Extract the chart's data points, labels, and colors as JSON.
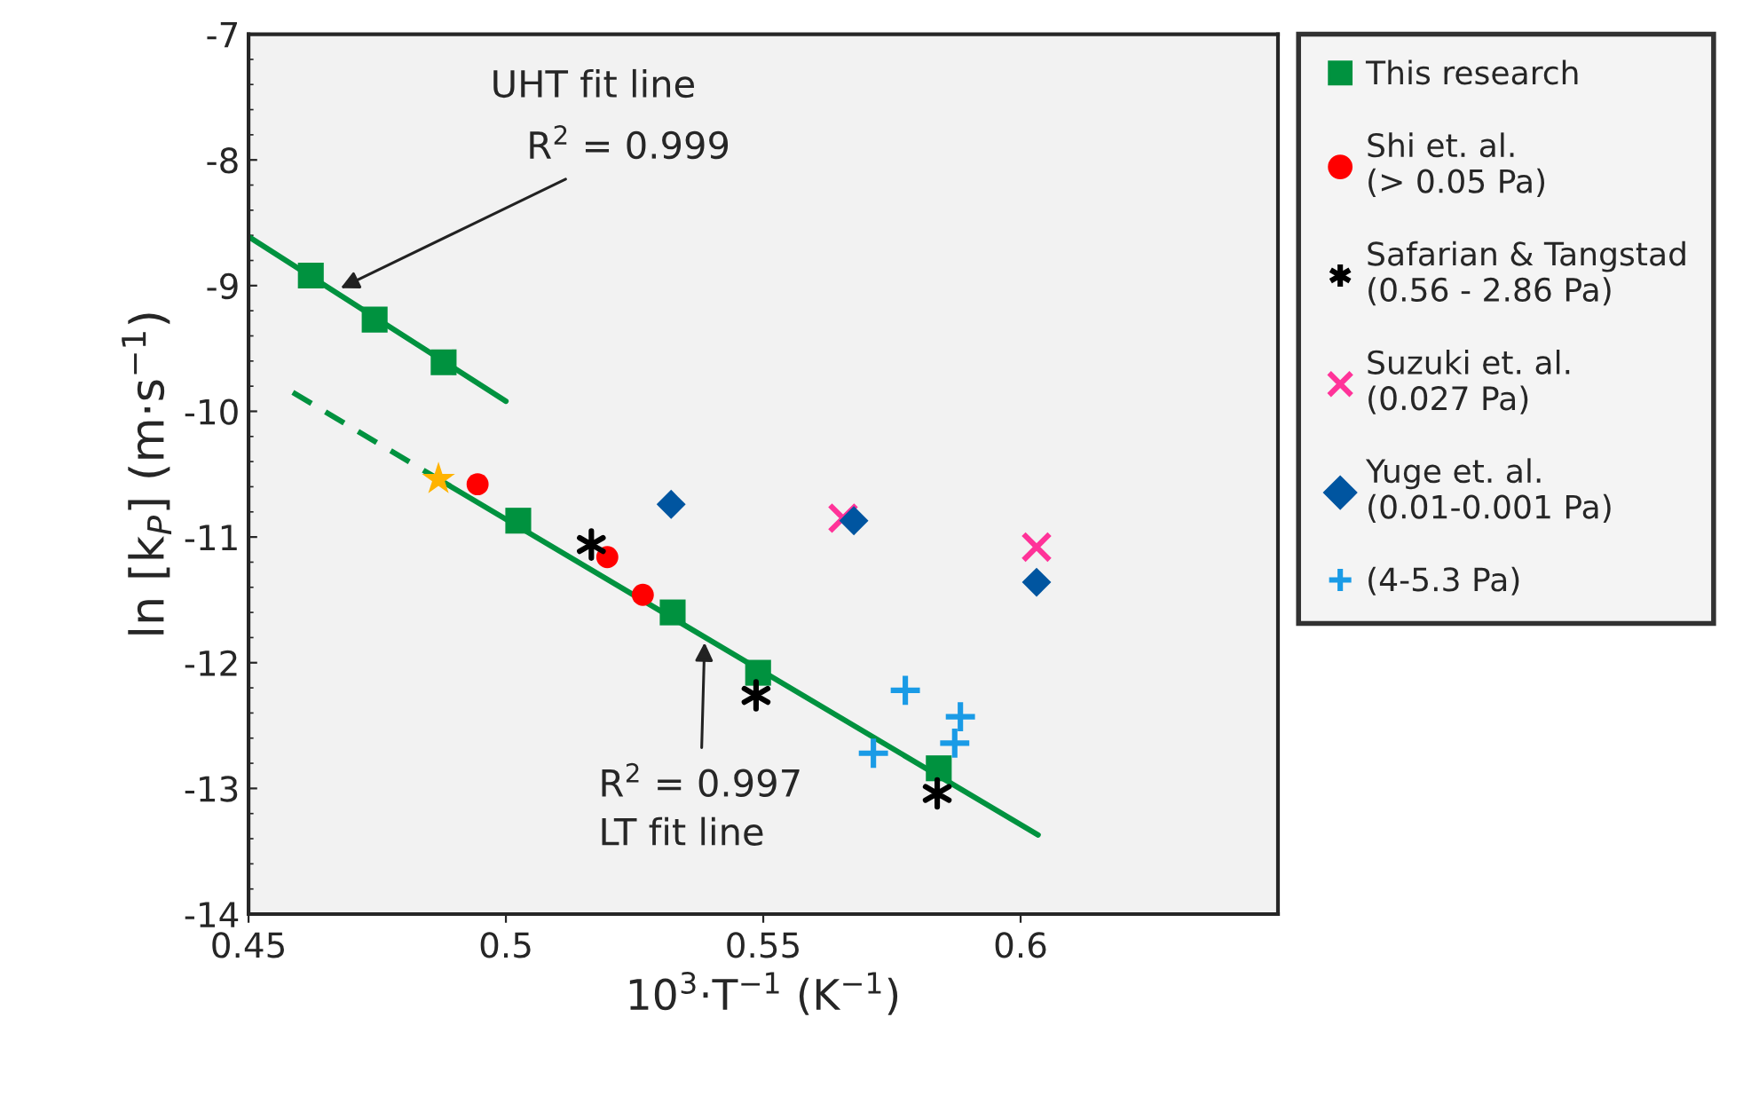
{
  "chart_data": {
    "type": "scatter",
    "xlabel": "10$^{3}$·T$^{−1}$ (K$^{−1}$)",
    "ylabel": "ln [k$_{P}$] (m·s$^{−1}$)",
    "xlim": [
      0.45,
      0.65
    ],
    "xticks": [
      0.45,
      0.5,
      0.55,
      0.6
    ],
    "ylim": [
      -14,
      -7
    ],
    "yticks": [
      -14,
      -13,
      -12,
      -11,
      -10,
      -9,
      -8,
      -7
    ],
    "grid": false,
    "legend": "right",
    "series": [
      {
        "name": "This research",
        "color": "#00923f",
        "marker": "square",
        "x": [
          0.4621,
          0.4745,
          0.4879,
          0.5024,
          0.5324,
          0.549,
          0.5841
        ],
        "values": [
          -8.92,
          -9.27,
          -9.61,
          -10.87,
          -11.6,
          -12.08,
          -12.84
        ]
      },
      {
        "name": "Shi et. al.\n(> 0.05 Pa)",
        "color": "#ff0000",
        "marker": "circle",
        "x": [
          0.4945,
          0.5197,
          0.5266
        ],
        "values": [
          -10.58,
          -11.16,
          -11.46
        ]
      },
      {
        "name": "Safarian & Tangstad\n(0.56 - 2.86 Pa)",
        "color": "#000000",
        "marker": "cross",
        "x": [
          0.5166,
          0.5486,
          0.5838
        ],
        "values": [
          -11.06,
          -12.26,
          -13.04
        ]
      },
      {
        "name": "Suzuki et. al.\n(0.027 Pa)",
        "color": "#ff3399",
        "marker": "x",
        "x": [
          0.5655,
          0.6031
        ],
        "values": [
          -10.85,
          -11.08
        ]
      },
      {
        "name": "Yuge et. al.\n(0.01-0.001 Pa)",
        "color": "#0055a0",
        "marker": "diamond",
        "x": [
          0.5321,
          0.5676,
          0.6031
        ],
        "values": [
          -10.74,
          -10.87,
          -11.36
        ]
      },
      {
        "name": "(4-5.3 Pa)",
        "color": "#1a9be6",
        "marker": "plus",
        "x": [
          0.5714,
          0.5776,
          0.5883,
          0.5872
        ],
        "values": [
          -12.72,
          -12.22,
          -12.43,
          -12.64
        ]
      },
      {
        "color": "#ffb300",
        "marker": "star",
        "x": [
          0.4869
        ],
        "values": [
          -10.54
        ]
      },
      {
        "type": "line",
        "color": "#00923f",
        "line_style": "solid",
        "x": [
          0.45,
          0.5
        ],
        "values": [
          -8.61,
          -9.92
        ]
      },
      {
        "type": "line",
        "color": "#00923f",
        "line_style": "dashed",
        "x": [
          0.4586,
          0.4869
        ],
        "values": [
          -9.85,
          -10.54
        ]
      },
      {
        "type": "line",
        "color": "#00923f",
        "line_style": "solid",
        "x": [
          0.4869,
          0.6034
        ],
        "values": [
          -10.54,
          -13.37
        ]
      }
    ],
    "annotations": [
      "UHT fit line",
      {
        "text": "R$^{2}$ = 0.999",
        "x": 0.4679,
        "y": -9.02
      },
      {
        "text": "R$^{2}$ = 0.997",
        "x": 0.5386,
        "y": -11.84
      },
      "LT fit line"
    ]
  }
}
